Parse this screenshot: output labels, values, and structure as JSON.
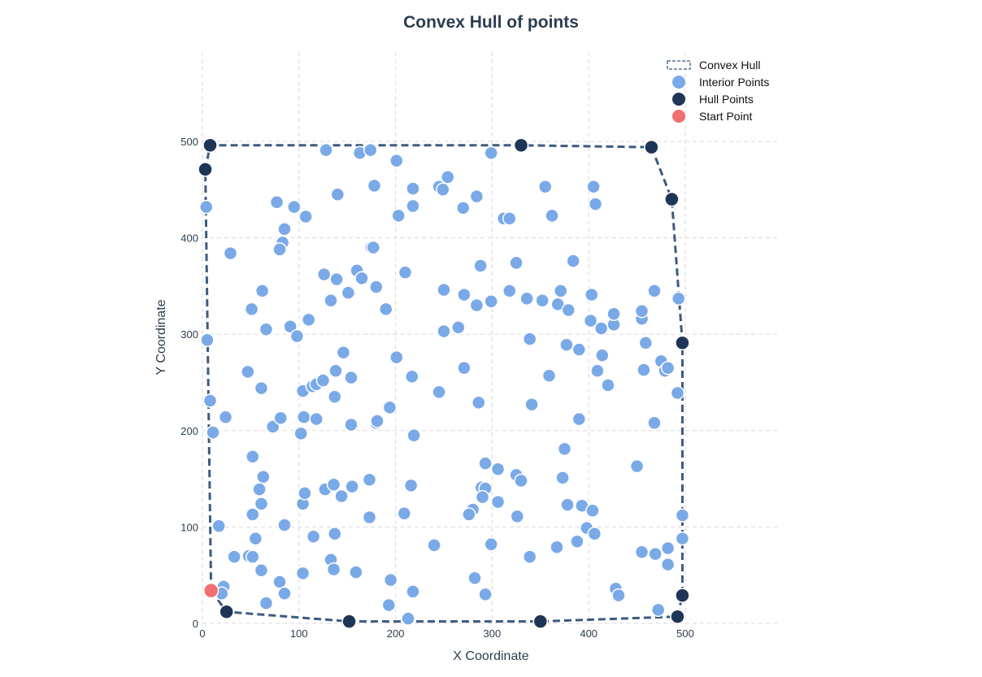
{
  "chart_data": {
    "type": "scatter",
    "title": "Convex Hull of points",
    "xlabel": "X Coordinate",
    "ylabel": "Y Coordinate",
    "xlim": [
      0,
      500
    ],
    "ylim": [
      0,
      500
    ],
    "xticks": [
      "0",
      "100",
      "200",
      "300",
      "400",
      "500"
    ],
    "yticks": [
      "0",
      "100",
      "200",
      "300",
      "400",
      "500"
    ],
    "grid": true,
    "legend_position": "top-right",
    "legend": [
      "Convex Hull",
      "Interior Points",
      "Hull Points",
      "Start Point"
    ],
    "colors": {
      "hull_line": "#3d5a80",
      "interior": "#7aa9e8",
      "hull_points": "#1e3557",
      "start_point": "#f07070",
      "title": "#2c3e50"
    },
    "series": [
      {
        "name": "Convex Hull",
        "kind": "polygon",
        "points": [
          [
            9,
            34
          ],
          [
            25,
            12
          ],
          [
            152,
            2
          ],
          [
            350,
            2
          ],
          [
            492,
            7
          ],
          [
            497,
            29
          ],
          [
            497,
            291
          ],
          [
            486,
            440
          ],
          [
            465,
            494
          ],
          [
            330,
            496
          ],
          [
            8,
            496
          ],
          [
            3,
            471
          ]
        ]
      },
      {
        "name": "Interior Points",
        "kind": "scatter",
        "points": [
          [
            128,
            491
          ],
          [
            163,
            488
          ],
          [
            174,
            491
          ],
          [
            201,
            480
          ],
          [
            299,
            488
          ],
          [
            254,
            463
          ],
          [
            245,
            453
          ],
          [
            249,
            450
          ],
          [
            218,
            451
          ],
          [
            140,
            445
          ],
          [
            178,
            454
          ],
          [
            77,
            437
          ],
          [
            95,
            432
          ],
          [
            4,
            432
          ],
          [
            107,
            422
          ],
          [
            203,
            423
          ],
          [
            218,
            433
          ],
          [
            270,
            431
          ],
          [
            284,
            443
          ],
          [
            312,
            420
          ],
          [
            318,
            420
          ],
          [
            355,
            453
          ],
          [
            362,
            423
          ],
          [
            405,
            453
          ],
          [
            407,
            435
          ],
          [
            85,
            409
          ],
          [
            83,
            395
          ],
          [
            80,
            388
          ],
          [
            175,
            390
          ],
          [
            177,
            390
          ],
          [
            29,
            384
          ],
          [
            210,
            364
          ],
          [
            126,
            362
          ],
          [
            139,
            357
          ],
          [
            160,
            366
          ],
          [
            165,
            358
          ],
          [
            62,
            345
          ],
          [
            151,
            343
          ],
          [
            180,
            349
          ],
          [
            250,
            346
          ],
          [
            288,
            371
          ],
          [
            325,
            374
          ],
          [
            384,
            376
          ],
          [
            271,
            341
          ],
          [
            284,
            330
          ],
          [
            299,
            334
          ],
          [
            318,
            345
          ],
          [
            336,
            337
          ],
          [
            352,
            335
          ],
          [
            368,
            331
          ],
          [
            371,
            345
          ],
          [
            379,
            325
          ],
          [
            403,
            341
          ],
          [
            402,
            314
          ],
          [
            413,
            306
          ],
          [
            426,
            310
          ],
          [
            426,
            321
          ],
          [
            455,
            316
          ],
          [
            455,
            324
          ],
          [
            468,
            345
          ],
          [
            493,
            337
          ],
          [
            51,
            326
          ],
          [
            110,
            315
          ],
          [
            133,
            335
          ],
          [
            190,
            326
          ],
          [
            5,
            294
          ],
          [
            66,
            305
          ],
          [
            91,
            308
          ],
          [
            98,
            298
          ],
          [
            250,
            303
          ],
          [
            265,
            307
          ],
          [
            339,
            295
          ],
          [
            377,
            289
          ],
          [
            390,
            284
          ],
          [
            414,
            278
          ],
          [
            459,
            291
          ],
          [
            146,
            281
          ],
          [
            201,
            276
          ],
          [
            47,
            261
          ],
          [
            61,
            244
          ],
          [
            104,
            241
          ],
          [
            114,
            246
          ],
          [
            118,
            248
          ],
          [
            125,
            252
          ],
          [
            138,
            262
          ],
          [
            154,
            255
          ],
          [
            217,
            256
          ],
          [
            271,
            265
          ],
          [
            245,
            240
          ],
          [
            286,
            229
          ],
          [
            359,
            257
          ],
          [
            409,
            262
          ],
          [
            420,
            247
          ],
          [
            457,
            263
          ],
          [
            475,
            272
          ],
          [
            479,
            262
          ],
          [
            482,
            265
          ],
          [
            492,
            239
          ],
          [
            8,
            231
          ],
          [
            24,
            214
          ],
          [
            11,
            198
          ],
          [
            137,
            235
          ],
          [
            194,
            224
          ],
          [
            73,
            204
          ],
          [
            81,
            213
          ],
          [
            102,
            197
          ],
          [
            105,
            214
          ],
          [
            118,
            212
          ],
          [
            154,
            206
          ],
          [
            180,
            208
          ],
          [
            181,
            210
          ],
          [
            219,
            195
          ],
          [
            341,
            227
          ],
          [
            390,
            212
          ],
          [
            375,
            181
          ],
          [
            468,
            208
          ],
          [
            52,
            173
          ],
          [
            63,
            152
          ],
          [
            59,
            139
          ],
          [
            61,
            124
          ],
          [
            52,
            113
          ],
          [
            104,
            124
          ],
          [
            106,
            135
          ],
          [
            127,
            139
          ],
          [
            136,
            144
          ],
          [
            144,
            132
          ],
          [
            155,
            142
          ],
          [
            173,
            149
          ],
          [
            216,
            143
          ],
          [
            293,
            166
          ],
          [
            306,
            160
          ],
          [
            325,
            154
          ],
          [
            330,
            148
          ],
          [
            289,
            141
          ],
          [
            293,
            140
          ],
          [
            290,
            131
          ],
          [
            306,
            126
          ],
          [
            280,
            118
          ],
          [
            276,
            113
          ],
          [
            326,
            111
          ],
          [
            173,
            110
          ],
          [
            209,
            114
          ],
          [
            373,
            151
          ],
          [
            378,
            123
          ],
          [
            393,
            122
          ],
          [
            404,
            117
          ],
          [
            450,
            163
          ],
          [
            497,
            112
          ],
          [
            17,
            101
          ],
          [
            85,
            102
          ],
          [
            137,
            93
          ],
          [
            115,
            90
          ],
          [
            55,
            88
          ],
          [
            33,
            69
          ],
          [
            48,
            70
          ],
          [
            52,
            69
          ],
          [
            61,
            55
          ],
          [
            133,
            66
          ],
          [
            136,
            56
          ],
          [
            159,
            53
          ],
          [
            104,
            52
          ],
          [
            80,
            43
          ],
          [
            85,
            31
          ],
          [
            66,
            21
          ],
          [
            22,
            38
          ],
          [
            20,
            31
          ],
          [
            195,
            45
          ],
          [
            218,
            33
          ],
          [
            193,
            19
          ],
          [
            213,
            5
          ],
          [
            240,
            81
          ],
          [
            299,
            82
          ],
          [
            282,
            47
          ],
          [
            293,
            30
          ],
          [
            339,
            69
          ],
          [
            367,
            79
          ],
          [
            388,
            85
          ],
          [
            398,
            99
          ],
          [
            406,
            93
          ],
          [
            455,
            74
          ],
          [
            469,
            72
          ],
          [
            482,
            78
          ],
          [
            482,
            61
          ],
          [
            497,
            88
          ],
          [
            428,
            36
          ],
          [
            431,
            29
          ],
          [
            472,
            14
          ]
        ]
      },
      {
        "name": "Hull Points",
        "kind": "scatter",
        "points": [
          [
            8,
            496
          ],
          [
            330,
            496
          ],
          [
            465,
            494
          ],
          [
            486,
            440
          ],
          [
            497,
            291
          ],
          [
            497,
            29
          ],
          [
            492,
            7
          ],
          [
            350,
            2
          ],
          [
            152,
            2
          ],
          [
            25,
            12
          ],
          [
            3,
            471
          ]
        ]
      },
      {
        "name": "Start Point",
        "kind": "scatter",
        "points": [
          [
            9,
            34
          ]
        ]
      }
    ]
  }
}
